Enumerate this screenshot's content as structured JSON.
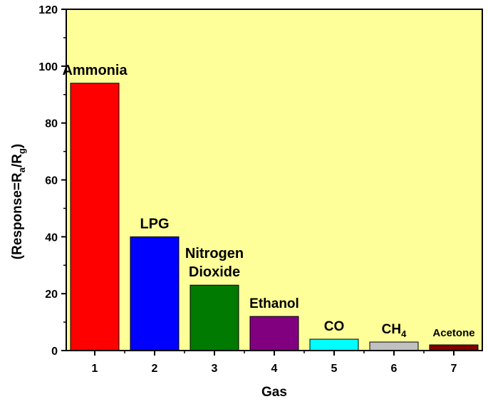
{
  "chart_data": {
    "type": "bar",
    "categories": [
      "1",
      "2",
      "3",
      "4",
      "5",
      "6",
      "7"
    ],
    "values": [
      94,
      40,
      23,
      12,
      4,
      3,
      2
    ],
    "bar_labels": [
      "Ammonia",
      "LPG",
      "Nitrogen Dioxide",
      "Ethanol",
      "CO",
      "CH4",
      "Acetone"
    ],
    "bar_colors": [
      "#ff0000",
      "#0000ff",
      "#007a00",
      "#800080",
      "#00ffff",
      "#c0c0c0",
      "#800000"
    ],
    "xlabel": "Gas",
    "ylabel_parts": {
      "prefix": "(Response=R",
      "sub1": "a",
      "mid": "/R",
      "sub2": "g",
      "suffix": ")"
    },
    "ylim": [
      0,
      120
    ],
    "yticks": [
      0,
      20,
      40,
      60,
      80,
      100,
      120
    ],
    "plot_background": "#ffff99",
    "grid": false,
    "legend": "none"
  }
}
